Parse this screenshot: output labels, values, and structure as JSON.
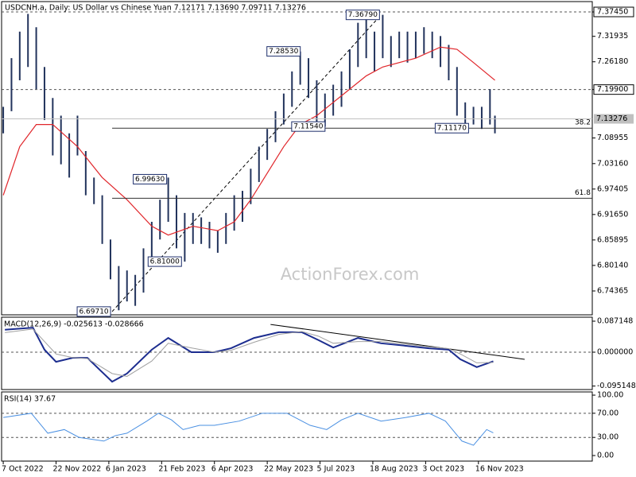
{
  "chart_data": [
    {
      "type": "ohlc",
      "title": "USDCNH.a, Daily:  US Dollar vs Chinese Yuan  7.12171 7.13690 7.09711 7.13276",
      "watermark": "ActionForex.com",
      "xlim": [
        -1,
        357
      ],
      "xticks": [
        {
          "value": 0,
          "label": "7 Oct 2022"
        },
        {
          "value": 32,
          "label": "22 Nov 2022"
        },
        {
          "value": 64,
          "label": "6 Jan 2023"
        },
        {
          "value": 96,
          "label": "21 Feb 2023"
        },
        {
          "value": 128,
          "label": "6 Apr 2023"
        },
        {
          "value": 160,
          "label": "22 May 2023"
        },
        {
          "value": 192,
          "label": "5 Jul 2023"
        },
        {
          "value": 224,
          "label": "18 Aug 2023"
        },
        {
          "value": 256,
          "label": "3 Oct 2023"
        },
        {
          "value": 288,
          "label": "16 Nov 2023"
        }
      ],
      "ylim": [
        6.6897,
        7.3979
      ],
      "yticks": [
        {
          "value": 7.3745,
          "label": "7.37450"
        },
        7.31935,
        {
          "value": 7.2618,
          "label": "7.26180"
        },
        {
          "value": 7.199,
          "label": "7.19900"
        },
        7.08955,
        {
          "value": 7.0316,
          "label": "7.03160"
        },
        6.97405,
        {
          "value": 6.9165,
          "label": "6.91650"
        },
        6.85895,
        {
          "value": 6.8014,
          "label": "6.80140"
        },
        6.74365
      ],
      "color": "#22335c",
      "x": [
        0,
        5,
        10,
        15,
        20,
        25,
        30,
        35,
        40,
        45,
        50,
        55,
        60,
        65,
        70,
        75,
        80,
        85,
        90,
        95,
        100,
        105,
        110,
        115,
        120,
        125,
        130,
        135,
        140,
        145,
        150,
        155,
        160,
        165,
        170,
        175,
        180,
        185,
        190,
        195,
        200,
        205,
        210,
        215,
        220,
        225,
        230,
        235,
        240,
        245,
        250,
        255,
        260,
        265,
        270,
        275,
        280,
        285,
        290,
        295,
        298
      ],
      "high": [
        7.16,
        7.27,
        7.33,
        7.37,
        7.34,
        7.25,
        7.18,
        7.14,
        7.1,
        7.14,
        7.06,
        7.0,
        6.96,
        6.86,
        6.8,
        6.79,
        6.78,
        6.84,
        6.9,
        6.95,
        7.0,
        6.96,
        6.92,
        6.92,
        6.91,
        6.9,
        6.88,
        6.92,
        6.96,
        6.97,
        7.02,
        7.07,
        7.11,
        7.15,
        7.19,
        7.24,
        7.285,
        7.27,
        7.22,
        7.19,
        7.21,
        7.24,
        7.29,
        7.35,
        7.36,
        7.33,
        7.368,
        7.32,
        7.33,
        7.33,
        7.33,
        7.34,
        7.33,
        7.32,
        7.3,
        7.25,
        7.17,
        7.16,
        7.16,
        7.2,
        7.14
      ],
      "low": [
        7.1,
        7.15,
        7.22,
        7.25,
        7.2,
        7.13,
        7.05,
        7.03,
        7.0,
        7.05,
        6.96,
        6.94,
        6.85,
        6.77,
        6.7,
        6.72,
        6.71,
        6.74,
        6.8,
        6.86,
        6.9,
        6.84,
        6.81,
        6.85,
        6.85,
        6.84,
        6.83,
        6.85,
        6.88,
        6.9,
        6.94,
        6.99,
        7.04,
        7.08,
        7.12,
        7.16,
        7.21,
        7.18,
        7.12,
        7.115,
        7.14,
        7.16,
        7.2,
        7.25,
        7.27,
        7.24,
        7.27,
        7.25,
        7.27,
        7.26,
        7.27,
        7.28,
        7.27,
        7.25,
        7.22,
        7.14,
        7.11,
        7.12,
        7.11,
        7.12,
        7.1
      ],
      "moving_average": {
        "color": "#e0262b",
        "x": [
          0,
          10,
          20,
          30,
          45,
          60,
          75,
          90,
          100,
          115,
          130,
          140,
          150,
          160,
          170,
          180,
          190,
          200,
          210,
          220,
          230,
          250,
          265,
          275,
          285,
          298
        ],
        "values": [
          6.96,
          7.07,
          7.12,
          7.12,
          7.07,
          7.0,
          6.95,
          6.89,
          6.87,
          6.89,
          6.88,
          6.9,
          6.95,
          7.01,
          7.07,
          7.12,
          7.14,
          7.17,
          7.2,
          7.23,
          7.25,
          7.27,
          7.295,
          7.29,
          7.26,
          7.22
        ]
      },
      "last_price": 7.13276,
      "last_price_color": "#c0c0c0",
      "dashed_levels": [
        7.3745,
        7.199
      ],
      "fib_levels": [
        {
          "ratio": 38.2,
          "price": 7.1117
        },
        {
          "ratio": 61.8,
          "price": 6.9533
        }
      ],
      "trendline": {
        "x": [
          66,
          229
        ],
        "values": [
          6.6971,
          7.3679
        ]
      },
      "annotations": [
        {
          "x": 229,
          "value": 7.3679,
          "label": "7.36790"
        },
        {
          "x": 181,
          "value": 7.2853,
          "label": "7.28530"
        },
        {
          "x": 196,
          "value": 7.1154,
          "label": "7.11540"
        },
        {
          "x": 283,
          "value": 7.1117,
          "label": "7.11170"
        },
        {
          "x": 100,
          "value": 6.9963,
          "label": "6.99630"
        },
        {
          "x": 109,
          "value": 6.81,
          "label": "6.81000"
        },
        {
          "x": 66,
          "value": 6.6971,
          "label": "6.69710"
        }
      ]
    },
    {
      "type": "line",
      "label": "MACD(12,26,9) -0.025613 -0.028666",
      "ylim": [
        -0.105,
        0.0983
      ],
      "yticks": [
        0.087148,
        {
          "value": 0,
          "label": "0.000000"
        },
        -0.095148
      ],
      "dashed_levels": [
        0
      ],
      "series": [
        {
          "color": "#1c2d8f",
          "width": 2,
          "x": [
            1,
            18,
            25,
            32,
            42,
            51,
            66,
            75,
            90,
            100,
            114,
            128,
            138,
            152,
            167,
            181,
            191,
            200,
            215,
            229,
            244,
            258,
            270,
            277,
            287,
            297
          ],
          "values": [
            0.063,
            0.069,
            0.007,
            -0.027,
            -0.016,
            -0.016,
            -0.083,
            -0.06,
            0.007,
            0.04,
            0,
            0,
            0.011,
            0.04,
            0.056,
            0.056,
            0.034,
            0.013,
            0.04,
            0.025,
            0.018,
            0.011,
            0.007,
            -0.02,
            -0.042,
            -0.025613
          ]
        },
        {
          "color": "#a0a0a0",
          "width": 1,
          "x": [
            1,
            18,
            25,
            32,
            42,
            51,
            66,
            75,
            90,
            100,
            114,
            128,
            138,
            152,
            167,
            181,
            191,
            200,
            215,
            229,
            244,
            258,
            270,
            277,
            287,
            297
          ],
          "values": [
            0.055,
            0.065,
            0.03,
            -0.005,
            -0.015,
            -0.018,
            -0.06,
            -0.068,
            -0.025,
            0.025,
            0.012,
            0,
            0.005,
            0.028,
            0.05,
            0.058,
            0.045,
            0.025,
            0.03,
            0.03,
            0.022,
            0.015,
            0.01,
            -0.005,
            -0.03,
            -0.028666
          ]
        }
      ],
      "trendline": {
        "x": [
          162,
          316
        ],
        "values": [
          0.078,
          -0.02
        ]
      }
    },
    {
      "type": "line",
      "label": "RSI(14) 37.67",
      "ylim": [
        -9.2,
        105.3
      ],
      "yticks": [
        {
          "value": 100,
          "label": "100.00"
        },
        {
          "value": 70,
          "label": "70.00"
        },
        {
          "value": 30,
          "label": "30.00"
        },
        {
          "value": 0,
          "label": "0.00"
        }
      ],
      "dashed_levels": [
        70,
        30
      ],
      "series": [
        {
          "color": "#4a90e2",
          "width": 1,
          "x": [
            0,
            17,
            27,
            37,
            46,
            61,
            68,
            75,
            87,
            94,
            102,
            109,
            119,
            128,
            143,
            157,
            172,
            186,
            196,
            205,
            215,
            229,
            244,
            258,
            268,
            278,
            285,
            293,
            297
          ],
          "values": [
            63,
            70,
            37,
            43,
            30,
            24,
            33,
            37,
            57,
            70,
            59,
            43,
            50,
            50,
            57,
            70,
            70,
            50,
            43,
            59,
            70,
            57,
            63,
            70,
            57,
            24,
            17,
            43,
            37.67
          ]
        }
      ]
    }
  ]
}
